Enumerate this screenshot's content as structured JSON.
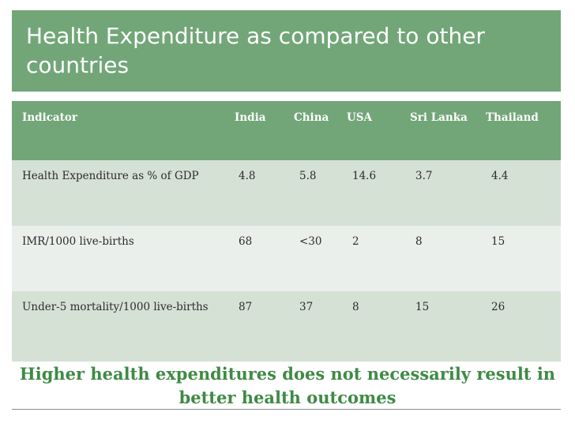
{
  "slide": {
    "title": "Health Expenditure as compared to other countries",
    "conclusion": "Higher  health expenditures does not necessarily result in better health outcomes"
  },
  "table": {
    "headers": [
      "Indicator",
      "India",
      "China",
      "USA",
      "Sri Lanka",
      "Thailand"
    ],
    "rows": [
      [
        "Health Expenditure as % of GDP",
        "4.8",
        "5.8",
        "14.6",
        "3.7",
        "4.4"
      ],
      [
        "IMR/1000 live-births",
        "68",
        "<30",
        "2",
        "8",
        "15"
      ],
      [
        "Under-5 mortality/1000 live-births",
        "87",
        "37",
        "8",
        "15",
        "26"
      ]
    ]
  },
  "colors": {
    "header_green": "#72a678",
    "india_highlight": "#dc9494",
    "sri_lanka_highlight": "#0aa6ef",
    "conclusion_text": "#3f8a45"
  }
}
